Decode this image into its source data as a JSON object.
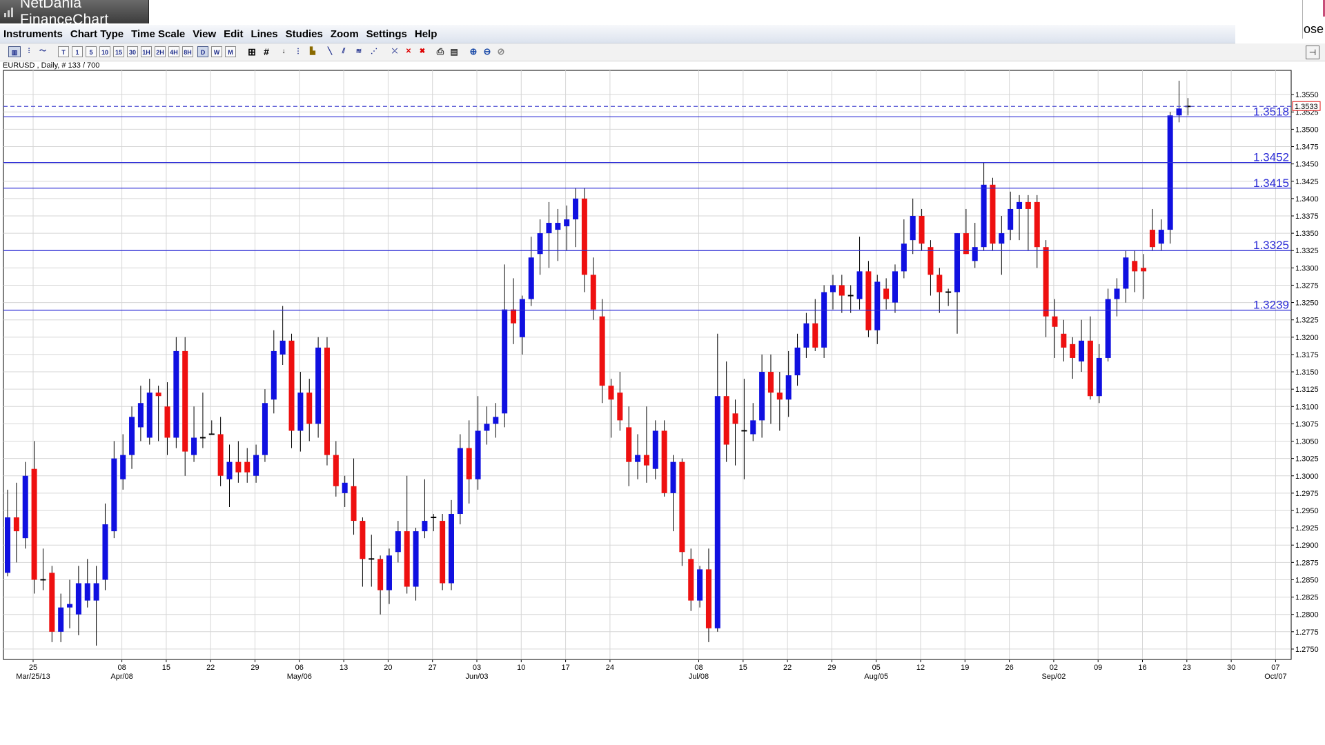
{
  "window": {
    "title": "NetDania FinanceChart",
    "close_label": "ose"
  },
  "menu": [
    "Instruments",
    "Chart Type",
    "Time Scale",
    "View",
    "Edit",
    "Lines",
    "Studies",
    "Zoom",
    "Settings",
    "Help"
  ],
  "toolbar": {
    "timescales": [
      "T",
      "1",
      "5",
      "10",
      "15",
      "30",
      "1H",
      "2H",
      "4H",
      "8H",
      "D",
      "W",
      "M"
    ],
    "selected": "D"
  },
  "chart": {
    "symbol_label": "EURUSD , Daily, # 133 / 700",
    "current_price_label": "1.3533",
    "current_price": 1.3533,
    "levels": [
      {
        "label": "1.3518",
        "value": 1.3518
      },
      {
        "label": "1.3452",
        "value": 1.3452
      },
      {
        "label": "1.3415",
        "value": 1.3415
      },
      {
        "label": "1.3325",
        "value": 1.3325
      },
      {
        "label": "1.3239",
        "value": 1.3239
      }
    ],
    "y_ticks": [
      "1.2750",
      "1.2775",
      "1.2800",
      "1.2825",
      "1.2850",
      "1.2875",
      "1.2900",
      "1.2925",
      "1.2950",
      "1.2975",
      "1.3000",
      "1.3025",
      "1.3050",
      "1.3075",
      "1.3100",
      "1.3125",
      "1.3150",
      "1.3175",
      "1.3200",
      "1.3225",
      "1.3250",
      "1.3275",
      "1.3300",
      "1.3325",
      "1.3350",
      "1.3375",
      "1.3400",
      "1.3425",
      "1.3450",
      "1.3475",
      "1.3500",
      "1.3525",
      "1.3550"
    ],
    "x_ticks": [
      {
        "day": "25",
        "sub": "Mar/25/13",
        "i": 0
      },
      {
        "day": "08",
        "sub": "Apr/08",
        "i": 10
      },
      {
        "day": "15",
        "sub": "",
        "i": 15
      },
      {
        "day": "22",
        "sub": "",
        "i": 20
      },
      {
        "day": "29",
        "sub": "",
        "i": 25
      },
      {
        "day": "06",
        "sub": "May/06",
        "i": 30
      },
      {
        "day": "13",
        "sub": "",
        "i": 35
      },
      {
        "day": "20",
        "sub": "",
        "i": 40
      },
      {
        "day": "27",
        "sub": "",
        "i": 45
      },
      {
        "day": "03",
        "sub": "Jun/03",
        "i": 50
      },
      {
        "day": "10",
        "sub": "",
        "i": 55
      },
      {
        "day": "17",
        "sub": "",
        "i": 60
      },
      {
        "day": "24",
        "sub": "",
        "i": 65
      },
      {
        "day": "08",
        "sub": "Jul/08",
        "i": 75
      },
      {
        "day": "15",
        "sub": "",
        "i": 80
      },
      {
        "day": "22",
        "sub": "",
        "i": 85
      },
      {
        "day": "29",
        "sub": "",
        "i": 90
      },
      {
        "day": "05",
        "sub": "Aug/05",
        "i": 95
      },
      {
        "day": "12",
        "sub": "",
        "i": 100
      },
      {
        "day": "19",
        "sub": "",
        "i": 105
      },
      {
        "day": "26",
        "sub": "",
        "i": 110
      },
      {
        "day": "02",
        "sub": "Sep/02",
        "i": 115
      },
      {
        "day": "09",
        "sub": "",
        "i": 120
      },
      {
        "day": "16",
        "sub": "",
        "i": 125
      },
      {
        "day": "23",
        "sub": "",
        "i": 130
      },
      {
        "day": "30",
        "sub": "",
        "i": 135
      },
      {
        "day": "07",
        "sub": "Oct/07",
        "i": 140
      }
    ],
    "colors": {
      "up": "#1010e0",
      "down": "#ee1010",
      "level": "#2b2bd6",
      "dashed": "#4a4ad0"
    }
  },
  "chart_data": {
    "type": "candlestick",
    "series_note": "",
    "ylim": [
      1.2735,
      1.3585
    ],
    "candles": [
      {
        "i": 0,
        "o": 1.286,
        "h": 1.298,
        "l": 1.2855,
        "c": 1.294
      },
      {
        "i": 1,
        "o": 1.294,
        "h": 1.299,
        "l": 1.2875,
        "c": 1.292
      },
      {
        "i": 2,
        "o": 1.291,
        "h": 1.302,
        "l": 1.2895,
        "c": 1.3
      },
      {
        "i": 3,
        "o": 1.301,
        "h": 1.305,
        "l": 1.283,
        "c": 1.285
      },
      {
        "i": 4,
        "o": 1.285,
        "h": 1.2895,
        "l": 1.2835,
        "c": 1.285
      },
      {
        "i": 5,
        "o": 1.286,
        "h": 1.287,
        "l": 1.276,
        "c": 1.2775
      },
      {
        "i": 6,
        "o": 1.2775,
        "h": 1.283,
        "l": 1.276,
        "c": 1.281
      },
      {
        "i": 7,
        "o": 1.281,
        "h": 1.285,
        "l": 1.278,
        "c": 1.2815
      },
      {
        "i": 8,
        "o": 1.28,
        "h": 1.287,
        "l": 1.277,
        "c": 1.2845
      },
      {
        "i": 9,
        "o": 1.282,
        "h": 1.288,
        "l": 1.281,
        "c": 1.2845
      },
      {
        "i": 10,
        "o": 1.282,
        "h": 1.287,
        "l": 1.2755,
        "c": 1.2845
      },
      {
        "i": 11,
        "o": 1.285,
        "h": 1.296,
        "l": 1.2835,
        "c": 1.293
      },
      {
        "i": 12,
        "o": 1.292,
        "h": 1.305,
        "l": 1.291,
        "c": 1.3025
      },
      {
        "i": 13,
        "o": 1.2995,
        "h": 1.306,
        "l": 1.298,
        "c": 1.303
      },
      {
        "i": 14,
        "o": 1.303,
        "h": 1.31,
        "l": 1.301,
        "c": 1.3085
      },
      {
        "i": 15,
        "o": 1.307,
        "h": 1.313,
        "l": 1.305,
        "c": 1.3105
      },
      {
        "i": 16,
        "o": 1.3055,
        "h": 1.314,
        "l": 1.3045,
        "c": 1.312
      },
      {
        "i": 17,
        "o": 1.312,
        "h": 1.313,
        "l": 1.305,
        "c": 1.3115
      },
      {
        "i": 18,
        "o": 1.31,
        "h": 1.3135,
        "l": 1.303,
        "c": 1.3055
      },
      {
        "i": 19,
        "o": 1.3055,
        "h": 1.32,
        "l": 1.304,
        "c": 1.318
      },
      {
        "i": 20,
        "o": 1.318,
        "h": 1.32,
        "l": 1.3,
        "c": 1.3035
      },
      {
        "i": 21,
        "o": 1.303,
        "h": 1.31,
        "l": 1.302,
        "c": 1.3055
      },
      {
        "i": 22,
        "o": 1.3055,
        "h": 1.312,
        "l": 1.304,
        "c": 1.3055
      },
      {
        "i": 23,
        "o": 1.306,
        "h": 1.308,
        "l": 1.306,
        "c": 1.306
      },
      {
        "i": 24,
        "o": 1.306,
        "h": 1.3085,
        "l": 1.2985,
        "c": 1.3
      },
      {
        "i": 25,
        "o": 1.2995,
        "h": 1.3045,
        "l": 1.2955,
        "c": 1.302
      },
      {
        "i": 26,
        "o": 1.302,
        "h": 1.305,
        "l": 1.299,
        "c": 1.3005
      },
      {
        "i": 27,
        "o": 1.302,
        "h": 1.304,
        "l": 1.299,
        "c": 1.3005
      },
      {
        "i": 28,
        "o": 1.3,
        "h": 1.3045,
        "l": 1.299,
        "c": 1.303
      },
      {
        "i": 29,
        "o": 1.303,
        "h": 1.3125,
        "l": 1.302,
        "c": 1.3105
      },
      {
        "i": 30,
        "o": 1.311,
        "h": 1.321,
        "l": 1.309,
        "c": 1.318
      },
      {
        "i": 31,
        "o": 1.3175,
        "h": 1.3245,
        "l": 1.316,
        "c": 1.3195
      },
      {
        "i": 32,
        "o": 1.3195,
        "h": 1.3205,
        "l": 1.304,
        "c": 1.3065
      },
      {
        "i": 33,
        "o": 1.3065,
        "h": 1.315,
        "l": 1.3035,
        "c": 1.312
      },
      {
        "i": 34,
        "o": 1.312,
        "h": 1.314,
        "l": 1.305,
        "c": 1.3075
      },
      {
        "i": 35,
        "o": 1.3075,
        "h": 1.32,
        "l": 1.3055,
        "c": 1.3185
      },
      {
        "i": 36,
        "o": 1.3185,
        "h": 1.32,
        "l": 1.3015,
        "c": 1.303
      },
      {
        "i": 37,
        "o": 1.303,
        "h": 1.305,
        "l": 1.297,
        "c": 1.2985
      },
      {
        "i": 38,
        "o": 1.2975,
        "h": 1.3,
        "l": 1.2955,
        "c": 1.299
      },
      {
        "i": 39,
        "o": 1.2985,
        "h": 1.3025,
        "l": 1.2915,
        "c": 1.2935
      },
      {
        "i": 40,
        "o": 1.2935,
        "h": 1.294,
        "l": 1.284,
        "c": 1.288
      },
      {
        "i": 41,
        "o": 1.288,
        "h": 1.2915,
        "l": 1.284,
        "c": 1.288
      },
      {
        "i": 42,
        "o": 1.288,
        "h": 1.2885,
        "l": 1.28,
        "c": 1.2835
      },
      {
        "i": 43,
        "o": 1.2835,
        "h": 1.2895,
        "l": 1.2815,
        "c": 1.2885
      },
      {
        "i": 44,
        "o": 1.289,
        "h": 1.2935,
        "l": 1.2875,
        "c": 1.292
      },
      {
        "i": 45,
        "o": 1.292,
        "h": 1.3,
        "l": 1.283,
        "c": 1.284
      },
      {
        "i": 46,
        "o": 1.284,
        "h": 1.2925,
        "l": 1.282,
        "c": 1.292
      },
      {
        "i": 47,
        "o": 1.292,
        "h": 1.2995,
        "l": 1.291,
        "c": 1.2935
      },
      {
        "i": 48,
        "o": 1.294,
        "h": 1.2945,
        "l": 1.292,
        "c": 1.294
      },
      {
        "i": 49,
        "o": 1.2935,
        "h": 1.2945,
        "l": 1.2835,
        "c": 1.2845
      },
      {
        "i": 50,
        "o": 1.2845,
        "h": 1.2965,
        "l": 1.2835,
        "c": 1.2945
      },
      {
        "i": 51,
        "o": 1.2945,
        "h": 1.306,
        "l": 1.293,
        "c": 1.304
      },
      {
        "i": 52,
        "o": 1.304,
        "h": 1.308,
        "l": 1.296,
        "c": 1.2995
      },
      {
        "i": 53,
        "o": 1.2995,
        "h": 1.3115,
        "l": 1.298,
        "c": 1.3065
      },
      {
        "i": 54,
        "o": 1.3065,
        "h": 1.31,
        "l": 1.3045,
        "c": 1.3075
      },
      {
        "i": 55,
        "o": 1.3075,
        "h": 1.3105,
        "l": 1.3055,
        "c": 1.3085
      },
      {
        "i": 56,
        "o": 1.309,
        "h": 1.3305,
        "l": 1.307,
        "c": 1.324
      },
      {
        "i": 57,
        "o": 1.324,
        "h": 1.3285,
        "l": 1.319,
        "c": 1.322
      },
      {
        "i": 58,
        "o": 1.32,
        "h": 1.326,
        "l": 1.3175,
        "c": 1.3255
      },
      {
        "i": 59,
        "o": 1.3255,
        "h": 1.3345,
        "l": 1.3245,
        "c": 1.3315
      },
      {
        "i": 60,
        "o": 1.332,
        "h": 1.337,
        "l": 1.329,
        "c": 1.335
      },
      {
        "i": 61,
        "o": 1.335,
        "h": 1.3395,
        "l": 1.33,
        "c": 1.3365
      },
      {
        "i": 62,
        "o": 1.3355,
        "h": 1.3385,
        "l": 1.331,
        "c": 1.3365
      },
      {
        "i": 63,
        "o": 1.336,
        "h": 1.339,
        "l": 1.3325,
        "c": 1.337
      },
      {
        "i": 64,
        "o": 1.337,
        "h": 1.3415,
        "l": 1.333,
        "c": 1.34
      },
      {
        "i": 65,
        "o": 1.34,
        "h": 1.3415,
        "l": 1.3265,
        "c": 1.329
      },
      {
        "i": 66,
        "o": 1.329,
        "h": 1.3315,
        "l": 1.3225,
        "c": 1.324
      },
      {
        "i": 67,
        "o": 1.323,
        "h": 1.3255,
        "l": 1.3105,
        "c": 1.313
      },
      {
        "i": 68,
        "o": 1.313,
        "h": 1.314,
        "l": 1.3055,
        "c": 1.311
      },
      {
        "i": 69,
        "o": 1.312,
        "h": 1.315,
        "l": 1.3065,
        "c": 1.308
      },
      {
        "i": 70,
        "o": 1.307,
        "h": 1.31,
        "l": 1.2985,
        "c": 1.302
      },
      {
        "i": 71,
        "o": 1.302,
        "h": 1.306,
        "l": 1.2995,
        "c": 1.303
      },
      {
        "i": 72,
        "o": 1.303,
        "h": 1.31,
        "l": 1.299,
        "c": 1.3015
      },
      {
        "i": 73,
        "o": 1.301,
        "h": 1.308,
        "l": 1.2995,
        "c": 1.3065
      },
      {
        "i": 74,
        "o": 1.3065,
        "h": 1.308,
        "l": 1.297,
        "c": 1.2975
      },
      {
        "i": 75,
        "o": 1.2975,
        "h": 1.303,
        "l": 1.292,
        "c": 1.302
      },
      {
        "i": 76,
        "o": 1.302,
        "h": 1.3025,
        "l": 1.287,
        "c": 1.289
      },
      {
        "i": 77,
        "o": 1.288,
        "h": 1.2895,
        "l": 1.2805,
        "c": 1.282
      },
      {
        "i": 78,
        "o": 1.282,
        "h": 1.287,
        "l": 1.281,
        "c": 1.2865
      },
      {
        "i": 79,
        "o": 1.2865,
        "h": 1.2895,
        "l": 1.276,
        "c": 1.278
      },
      {
        "i": 80,
        "o": 1.278,
        "h": 1.3205,
        "l": 1.2775,
        "c": 1.3115
      },
      {
        "i": 81,
        "o": 1.3115,
        "h": 1.3165,
        "l": 1.302,
        "c": 1.3045
      },
      {
        "i": 82,
        "o": 1.309,
        "h": 1.311,
        "l": 1.3015,
        "c": 1.3075
      },
      {
        "i": 83,
        "o": 1.3065,
        "h": 1.314,
        "l": 1.2995,
        "c": 1.3065
      },
      {
        "i": 84,
        "o": 1.306,
        "h": 1.3105,
        "l": 1.305,
        "c": 1.308
      },
      {
        "i": 85,
        "o": 1.308,
        "h": 1.3175,
        "l": 1.3055,
        "c": 1.315
      },
      {
        "i": 86,
        "o": 1.315,
        "h": 1.3175,
        "l": 1.3075,
        "c": 1.312
      },
      {
        "i": 87,
        "o": 1.312,
        "h": 1.315,
        "l": 1.3065,
        "c": 1.311
      },
      {
        "i": 88,
        "o": 1.311,
        "h": 1.318,
        "l": 1.3085,
        "c": 1.3145
      },
      {
        "i": 89,
        "o": 1.3145,
        "h": 1.3205,
        "l": 1.313,
        "c": 1.3185
      },
      {
        "i": 90,
        "o": 1.3185,
        "h": 1.3235,
        "l": 1.317,
        "c": 1.322
      },
      {
        "i": 91,
        "o": 1.322,
        "h": 1.3255,
        "l": 1.318,
        "c": 1.3185
      },
      {
        "i": 92,
        "o": 1.3185,
        "h": 1.3275,
        "l": 1.317,
        "c": 1.3265
      },
      {
        "i": 93,
        "o": 1.3265,
        "h": 1.329,
        "l": 1.324,
        "c": 1.3275
      },
      {
        "i": 94,
        "o": 1.3275,
        "h": 1.329,
        "l": 1.3235,
        "c": 1.326
      },
      {
        "i": 95,
        "o": 1.326,
        "h": 1.3275,
        "l": 1.3235,
        "c": 1.326
      },
      {
        "i": 96,
        "o": 1.3255,
        "h": 1.3345,
        "l": 1.324,
        "c": 1.3295
      },
      {
        "i": 97,
        "o": 1.3295,
        "h": 1.331,
        "l": 1.32,
        "c": 1.321
      },
      {
        "i": 98,
        "o": 1.321,
        "h": 1.329,
        "l": 1.319,
        "c": 1.328
      },
      {
        "i": 99,
        "o": 1.327,
        "h": 1.3285,
        "l": 1.324,
        "c": 1.3255
      },
      {
        "i": 100,
        "o": 1.325,
        "h": 1.3305,
        "l": 1.3235,
        "c": 1.3295
      },
      {
        "i": 101,
        "o": 1.3295,
        "h": 1.337,
        "l": 1.3285,
        "c": 1.3335
      },
      {
        "i": 102,
        "o": 1.334,
        "h": 1.34,
        "l": 1.332,
        "c": 1.3375
      },
      {
        "i": 103,
        "o": 1.3375,
        "h": 1.3385,
        "l": 1.3325,
        "c": 1.3335
      },
      {
        "i": 104,
        "o": 1.333,
        "h": 1.334,
        "l": 1.326,
        "c": 1.329
      },
      {
        "i": 105,
        "o": 1.329,
        "h": 1.33,
        "l": 1.3235,
        "c": 1.3265
      },
      {
        "i": 106,
        "o": 1.3265,
        "h": 1.327,
        "l": 1.3245,
        "c": 1.3265
      },
      {
        "i": 107,
        "o": 1.3265,
        "h": 1.335,
        "l": 1.3205,
        "c": 1.335
      },
      {
        "i": 108,
        "o": 1.335,
        "h": 1.3385,
        "l": 1.332,
        "c": 1.332
      },
      {
        "i": 109,
        "o": 1.331,
        "h": 1.3365,
        "l": 1.33,
        "c": 1.333
      },
      {
        "i": 110,
        "o": 1.333,
        "h": 1.3452,
        "l": 1.3325,
        "c": 1.342
      },
      {
        "i": 111,
        "o": 1.342,
        "h": 1.343,
        "l": 1.3325,
        "c": 1.3335
      },
      {
        "i": 112,
        "o": 1.3335,
        "h": 1.3375,
        "l": 1.329,
        "c": 1.335
      },
      {
        "i": 113,
        "o": 1.3355,
        "h": 1.341,
        "l": 1.334,
        "c": 1.3385
      },
      {
        "i": 114,
        "o": 1.3385,
        "h": 1.3405,
        "l": 1.334,
        "c": 1.3395
      },
      {
        "i": 115,
        "o": 1.3395,
        "h": 1.3405,
        "l": 1.3325,
        "c": 1.3385
      },
      {
        "i": 116,
        "o": 1.3395,
        "h": 1.3405,
        "l": 1.33,
        "c": 1.333
      },
      {
        "i": 117,
        "o": 1.333,
        "h": 1.334,
        "l": 1.32,
        "c": 1.323
      },
      {
        "i": 118,
        "o": 1.323,
        "h": 1.3255,
        "l": 1.317,
        "c": 1.3215
      },
      {
        "i": 119,
        "o": 1.3205,
        "h": 1.3225,
        "l": 1.3165,
        "c": 1.3185
      },
      {
        "i": 120,
        "o": 1.319,
        "h": 1.32,
        "l": 1.314,
        "c": 1.317
      },
      {
        "i": 121,
        "o": 1.3165,
        "h": 1.3225,
        "l": 1.315,
        "c": 1.3195
      },
      {
        "i": 122,
        "o": 1.3195,
        "h": 1.323,
        "l": 1.311,
        "c": 1.3115
      },
      {
        "i": 123,
        "o": 1.3115,
        "h": 1.319,
        "l": 1.3105,
        "c": 1.317
      },
      {
        "i": 124,
        "o": 1.317,
        "h": 1.327,
        "l": 1.3165,
        "c": 1.3255
      },
      {
        "i": 125,
        "o": 1.3255,
        "h": 1.3285,
        "l": 1.323,
        "c": 1.327
      },
      {
        "i": 126,
        "o": 1.327,
        "h": 1.3325,
        "l": 1.325,
        "c": 1.3315
      },
      {
        "i": 127,
        "o": 1.331,
        "h": 1.3325,
        "l": 1.3265,
        "c": 1.3295
      },
      {
        "i": 128,
        "o": 1.33,
        "h": 1.332,
        "l": 1.3255,
        "c": 1.3295
      },
      {
        "i": 129,
        "o": 1.3355,
        "h": 1.3385,
        "l": 1.3325,
        "c": 1.333
      },
      {
        "i": 130,
        "o": 1.3335,
        "h": 1.337,
        "l": 1.3325,
        "c": 1.3355
      },
      {
        "i": 131,
        "o": 1.3355,
        "h": 1.3525,
        "l": 1.3335,
        "c": 1.352
      },
      {
        "i": 132,
        "o": 1.352,
        "h": 1.357,
        "l": 1.351,
        "c": 1.353
      },
      {
        "i": 133,
        "o": 1.3533,
        "h": 1.3545,
        "l": 1.352,
        "c": 1.3533
      }
    ]
  }
}
